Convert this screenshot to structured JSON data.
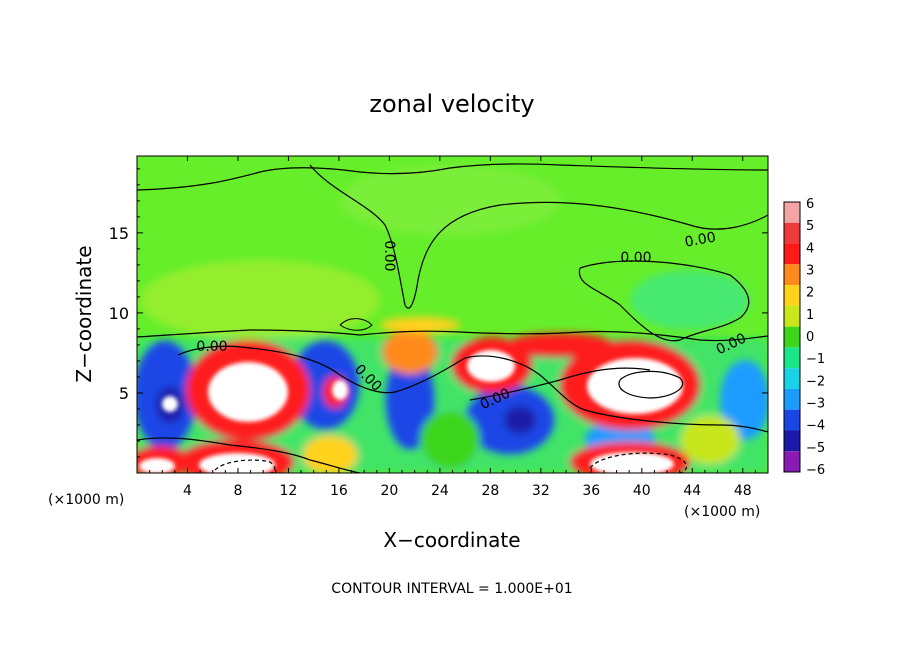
{
  "chart_data": {
    "type": "heatmap",
    "title": "zonal velocity",
    "xlabel": "X−coordinate",
    "ylabel": "Z−coordinate",
    "x_unit_left": "(×1000 m)",
    "x_unit_right": "(×1000 m)",
    "footer": "CONTOUR INTERVAL = 1.000E+01",
    "xlim": [
      0,
      50
    ],
    "ylim": [
      0,
      19.8
    ],
    "x_ticks": [
      4,
      8,
      12,
      16,
      20,
      24,
      28,
      32,
      36,
      40,
      44,
      48
    ],
    "x_tick_labels": [
      "4",
      "8",
      "12",
      "16",
      "20",
      "24",
      "28",
      "32",
      "36",
      "40",
      "44",
      "48"
    ],
    "y_ticks": [
      5,
      10,
      15
    ],
    "y_tick_labels": [
      "5",
      "10",
      "15"
    ],
    "colorbar": {
      "levels": [
        6,
        5,
        4,
        3,
        2,
        1,
        0,
        -1,
        -2,
        -3,
        -4,
        -5,
        -6
      ],
      "labels": [
        "6",
        "5",
        "4",
        "3",
        "2",
        "1",
        "0",
        "−1",
        "−2",
        "−3",
        "−4",
        "−5",
        "−6"
      ],
      "colors": [
        "#f4a4a4",
        "#ee3c3c",
        "#ff1a1a",
        "#ff8a1a",
        "#ffd21a",
        "#c8e61a",
        "#3ed61a",
        "#1ae68a",
        "#1ad2e6",
        "#1a9cff",
        "#1a46e6",
        "#1a1aa8",
        "#8a1ab4"
      ]
    },
    "contour_labels": [
      "0.00",
      "0.00",
      "0.00",
      "0.00",
      "0.00",
      "0.00",
      "0.00"
    ],
    "colors": {
      "background_field": "#55ee22",
      "upper_field": "#77ee33",
      "positive_core": "#ffffff",
      "contour_line": "#000000"
    }
  }
}
